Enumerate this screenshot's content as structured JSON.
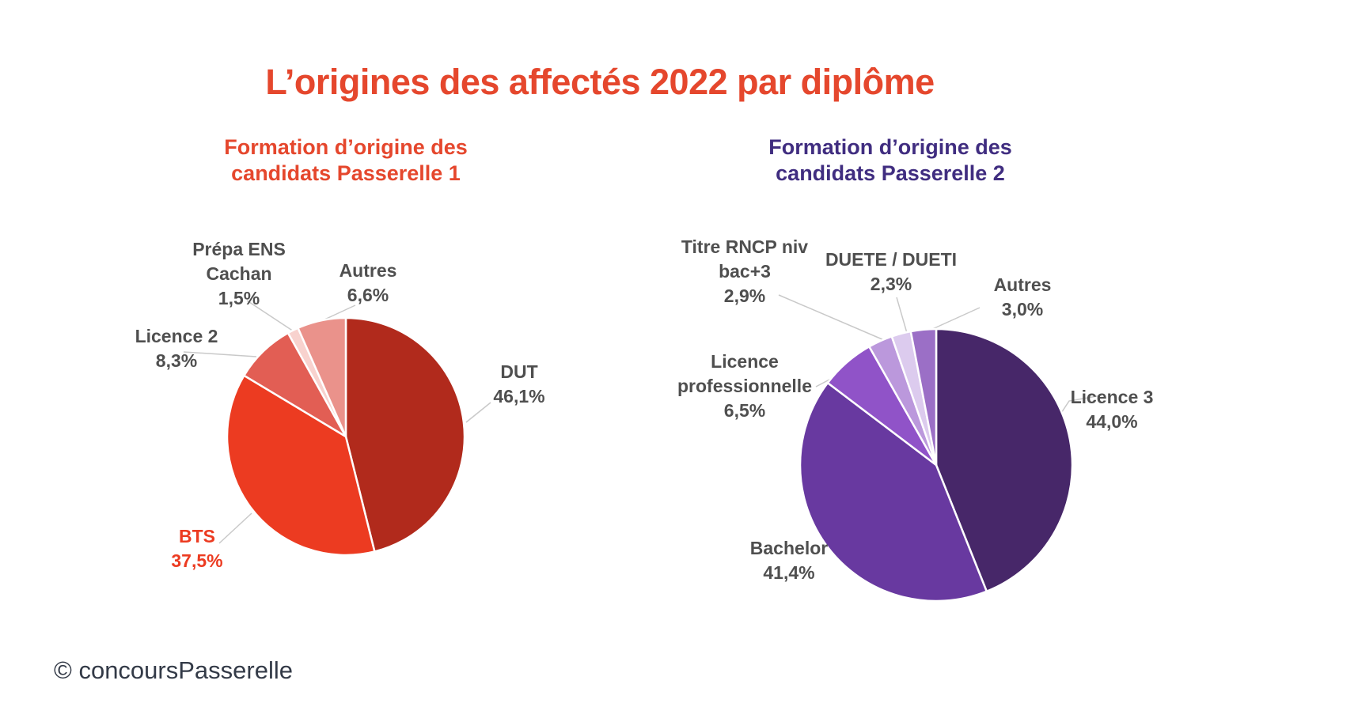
{
  "page": {
    "title": "L’origines des affectés 2022 par diplôme",
    "title_color": "#e5472d",
    "copyright": "© concoursPasserelle",
    "background": "#ffffff",
    "label_text_color": "#4f4f4f",
    "leader_line_color": "#c9c9c9"
  },
  "chart_data": [
    {
      "type": "pie",
      "title": "Formation d’origine des candidats Passerelle 1",
      "title_color": "#e5472d",
      "start_angle": "top",
      "direction": "clockwise",
      "legend_position": "none",
      "labels_outside_with_leader_lines": true,
      "slices": [
        {
          "label": "DUT",
          "value": 46.1,
          "pct_label": "46,1%",
          "color": "#b12a1c"
        },
        {
          "label": "BTS",
          "value": 37.5,
          "pct_label": "37,5%",
          "color": "#ec3b21",
          "label_color": "#ec3b21"
        },
        {
          "label": "Licence 2",
          "value": 8.3,
          "pct_label": "8,3%",
          "color": "#e25e54"
        },
        {
          "label": "Prépa ENS Cachan",
          "value": 1.5,
          "pct_label": "1,5%",
          "color": "#f8d2ce"
        },
        {
          "label": "Autres",
          "value": 6.6,
          "pct_label": "6,6%",
          "color": "#ea928b"
        }
      ]
    },
    {
      "type": "pie",
      "title": "Formation d’origine des candidats Passerelle 2",
      "title_color": "#402d80",
      "start_angle": "top",
      "direction": "clockwise",
      "legend_position": "none",
      "labels_outside_with_leader_lines": true,
      "slices": [
        {
          "label": "Licence 3",
          "value": 44.0,
          "pct_label": "44,0%",
          "color": "#472769"
        },
        {
          "label": "Bachelor",
          "value": 41.4,
          "pct_label": "41,4%",
          "color": "#6839a0"
        },
        {
          "label": "Licence professionnelle",
          "value": 6.5,
          "pct_label": "6,5%",
          "color": "#9053c8"
        },
        {
          "label": "Titre RNCP niv bac+3",
          "value": 2.9,
          "pct_label": "2,9%",
          "color": "#bb98dc"
        },
        {
          "label": "DUETE / DUETI",
          "value": 2.3,
          "pct_label": "2,3%",
          "color": "#dccbee"
        },
        {
          "label": "Autres",
          "value": 3.0,
          "pct_label": "3,0%",
          "color": "#9b6fc6"
        }
      ]
    }
  ]
}
